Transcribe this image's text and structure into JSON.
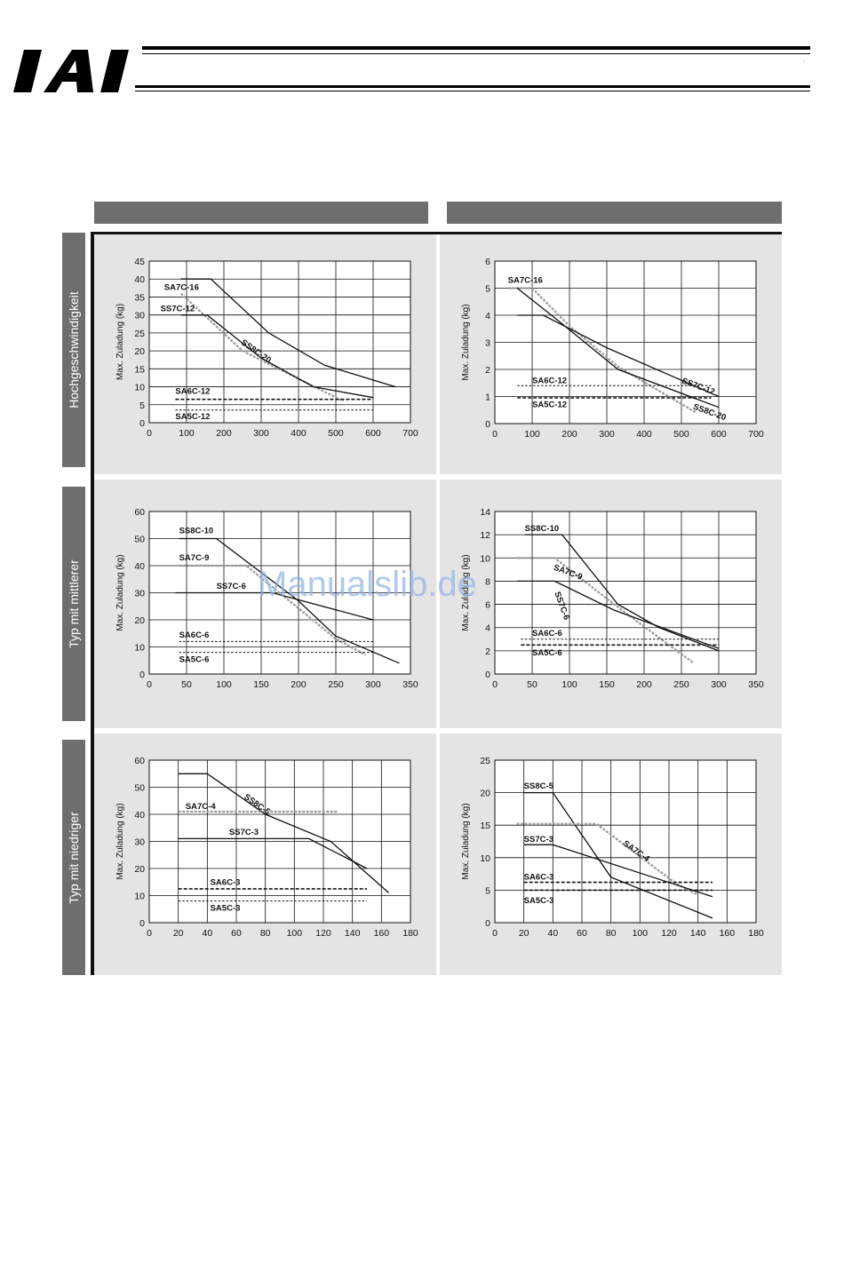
{
  "brand": {
    "logo_text": "IAI"
  },
  "column_headers": [
    "",
    ""
  ],
  "row_labels": [
    "Hochgeschwindigkeit",
    "Typ mit mittlerer",
    "Typ mit niedriger"
  ],
  "watermark": "Manualslib.de",
  "corner_mark": ".",
  "chart_data": [
    {
      "type": "line",
      "ylabel": "Max. Zuladung (kg)",
      "xlim": [
        0,
        700
      ],
      "ylim": [
        0,
        45
      ],
      "xticks": [
        0,
        100,
        200,
        300,
        400,
        500,
        600,
        700
      ],
      "yticks": [
        0,
        5,
        10,
        15,
        20,
        25,
        30,
        35,
        40,
        45
      ],
      "series": [
        {
          "name": "SA7C-16",
          "style": "gray",
          "points": [
            [
              85,
              36
            ],
            [
              250,
              20
            ],
            [
              520,
              6
            ]
          ],
          "label_at": [
            40,
            37
          ]
        },
        {
          "name": "SS8C-20",
          "style": "solid",
          "points": [
            [
              85,
              40
            ],
            [
              165,
              40
            ],
            [
              320,
              25
            ],
            [
              470,
              16
            ],
            [
              660,
              10
            ]
          ],
          "label_at": [
            245,
            22
          ],
          "rotate": 35
        },
        {
          "name": "SS7C-12",
          "style": "solid",
          "points": [
            [
              85,
              30
            ],
            [
              155,
              30
            ],
            [
              300,
              18
            ],
            [
              440,
              10
            ],
            [
              600,
              7
            ]
          ],
          "label_at": [
            30,
            31
          ]
        },
        {
          "name": "SA6C-12",
          "style": "dash",
          "points": [
            [
              70,
              6.5
            ],
            [
              600,
              6.5
            ]
          ],
          "label_at": [
            70,
            8
          ]
        },
        {
          "name": "SA5C-12",
          "style": "fine",
          "points": [
            [
              70,
              3.5
            ],
            [
              600,
              3.5
            ]
          ],
          "label_at": [
            70,
            1
          ]
        }
      ]
    },
    {
      "type": "line",
      "ylabel": "Max. Zuladung (kg)",
      "xlim": [
        0,
        700
      ],
      "ylim": [
        0,
        6
      ],
      "xticks": [
        0,
        100,
        200,
        300,
        400,
        500,
        600,
        700
      ],
      "yticks": [
        0,
        1,
        2,
        3,
        4,
        5,
        6
      ],
      "series": [
        {
          "name": "SA7C-16",
          "style": "gray",
          "points": [
            [
              35,
              5
            ],
            [
              100,
              5
            ],
            [
              200,
              3.6
            ],
            [
              330,
              2.1
            ],
            [
              540,
              0.4
            ]
          ],
          "label_at": [
            35,
            5.2
          ]
        },
        {
          "name": "SS7C-12",
          "style": "solid",
          "points": [
            [
              60,
              4
            ],
            [
              130,
              4
            ],
            [
              300,
              2.8
            ],
            [
              600,
              1
            ]
          ],
          "label_at": [
            500,
            1.5
          ],
          "rotate": 20
        },
        {
          "name": "SS8C-20",
          "style": "solid",
          "points": [
            [
              60,
              5
            ],
            [
              170,
              3.8
            ],
            [
              330,
              2
            ],
            [
              600,
              0.6
            ]
          ],
          "label_at": [
            530,
            0.55
          ],
          "rotate": 20
        },
        {
          "name": "SA6C-12",
          "style": "fine",
          "points": [
            [
              60,
              1.4
            ],
            [
              580,
              1.4
            ]
          ],
          "label_at": [
            100,
            1.5
          ]
        },
        {
          "name": "SA5C-12",
          "style": "dash",
          "points": [
            [
              60,
              0.95
            ],
            [
              580,
              0.95
            ]
          ],
          "label_at": [
            100,
            0.6
          ]
        }
      ]
    },
    {
      "type": "line",
      "ylabel": "Max. Zuladung (kg)",
      "xlim": [
        0,
        350
      ],
      "ylim": [
        0,
        60
      ],
      "xticks": [
        0,
        50,
        100,
        150,
        200,
        250,
        300,
        350
      ],
      "yticks": [
        0,
        10,
        20,
        30,
        40,
        50,
        60
      ],
      "series": [
        {
          "name": "SS8C-10",
          "style": "solid",
          "points": [
            [
              40,
              50
            ],
            [
              90,
              50
            ],
            [
              200,
              27
            ],
            [
              250,
              14
            ],
            [
              335,
              4
            ]
          ],
          "label_at": [
            40,
            52
          ]
        },
        {
          "name": "SA7C-9",
          "style": "gray",
          "points": [
            [
              40,
              40
            ],
            [
              130,
              40
            ],
            [
              250,
              13
            ],
            [
              290,
              7
            ]
          ],
          "label_at": [
            40,
            42
          ]
        },
        {
          "name": "SS7C-6",
          "style": "solid",
          "points": [
            [
              35,
              30
            ],
            [
              165,
              30
            ],
            [
              300,
              20
            ]
          ],
          "label_at": [
            90,
            31.5
          ]
        },
        {
          "name": "SA6C-6",
          "style": "fine",
          "points": [
            [
              40,
              12
            ],
            [
              300,
              12
            ]
          ],
          "label_at": [
            40,
            13.5
          ]
        },
        {
          "name": "SA5C-6",
          "style": "fine",
          "points": [
            [
              40,
              8
            ],
            [
              300,
              8
            ]
          ],
          "label_at": [
            40,
            4.5
          ]
        }
      ]
    },
    {
      "type": "line",
      "ylabel": "Max. Zuladung (kg)",
      "xlim": [
        0,
        350
      ],
      "ylim": [
        0,
        14
      ],
      "xticks": [
        0,
        50,
        100,
        150,
        200,
        250,
        300,
        350
      ],
      "yticks": [
        0,
        2,
        4,
        6,
        8,
        10,
        12,
        14
      ],
      "series": [
        {
          "name": "SS8C-10",
          "style": "solid",
          "points": [
            [
              40,
              12
            ],
            [
              90,
              12
            ],
            [
              165,
              6
            ],
            [
              220,
              4
            ],
            [
              300,
              2
            ]
          ],
          "label_at": [
            40,
            12.3
          ]
        },
        {
          "name": "SA7C-9",
          "style": "gray",
          "points": [
            [
              30,
              10
            ],
            [
              80,
              10
            ],
            [
              160,
              6
            ],
            [
              265,
              1
            ]
          ],
          "label_at": [
            78,
            9
          ],
          "rotate": 20
        },
        {
          "name": "SS7C-6",
          "style": "solid",
          "points": [
            [
              30,
              8
            ],
            [
              80,
              8
            ],
            [
              160,
              5.5
            ],
            [
              300,
              2.2
            ]
          ],
          "label_at": [
            80,
            7
          ],
          "rotate": 70
        },
        {
          "name": "SA6C-6",
          "style": "fine",
          "points": [
            [
              35,
              3
            ],
            [
              300,
              3
            ]
          ],
          "label_at": [
            50,
            3.3
          ]
        },
        {
          "name": "SA5C-6",
          "style": "dash",
          "points": [
            [
              35,
              2.5
            ],
            [
              300,
              2.5
            ]
          ],
          "label_at": [
            50,
            1.6
          ]
        }
      ]
    },
    {
      "type": "line",
      "ylabel": "Max. Zuladung (kg)",
      "xlim": [
        0,
        180
      ],
      "ylim": [
        0,
        60
      ],
      "xticks": [
        0,
        20,
        40,
        60,
        80,
        100,
        120,
        140,
        160,
        180
      ],
      "yticks": [
        0,
        10,
        20,
        30,
        40,
        50,
        60
      ],
      "series": [
        {
          "name": "SS8C-5",
          "style": "solid",
          "points": [
            [
              20,
              55
            ],
            [
              40,
              55
            ],
            [
              80,
              40
            ],
            [
              125,
              30
            ],
            [
              165,
              11
            ]
          ],
          "label_at": [
            65,
            46
          ],
          "rotate": 35
        },
        {
          "name": "SA7C-4",
          "style": "gray",
          "points": [
            [
              20,
              41
            ],
            [
              130,
              41
            ]
          ],
          "label_at": [
            25,
            42
          ]
        },
        {
          "name": "SS7C-3",
          "style": "solid",
          "points": [
            [
              20,
              31
            ],
            [
              110,
              31
            ],
            [
              150,
              20
            ]
          ],
          "label_at": [
            55,
            32.5
          ]
        },
        {
          "name": "SA6C-3",
          "style": "dash",
          "points": [
            [
              20,
              12.5
            ],
            [
              150,
              12.5
            ]
          ],
          "label_at": [
            42,
            14
          ]
        },
        {
          "name": "SA5C-3",
          "style": "fine",
          "points": [
            [
              20,
              8
            ],
            [
              150,
              8
            ]
          ],
          "label_at": [
            42,
            4.5
          ]
        }
      ]
    },
    {
      "type": "line",
      "ylabel": "Max. Zuladung (kg)",
      "xlim": [
        0,
        180
      ],
      "ylim": [
        0,
        25
      ],
      "xticks": [
        0,
        20,
        40,
        60,
        80,
        100,
        120,
        140,
        160,
        180
      ],
      "yticks": [
        0,
        5,
        10,
        15,
        20,
        25
      ],
      "series": [
        {
          "name": "SS8C-5",
          "style": "solid",
          "points": [
            [
              20,
              20
            ],
            [
              40,
              20
            ],
            [
              80,
              7
            ],
            [
              150,
              0.7
            ]
          ],
          "label_at": [
            20,
            20.6
          ]
        },
        {
          "name": "SA7C-4",
          "style": "gray",
          "points": [
            [
              15,
              15.2
            ],
            [
              70,
              15.2
            ],
            [
              125,
              6
            ],
            [
              140,
              4.3
            ]
          ],
          "label_at": [
            88,
            12
          ],
          "rotate": 35
        },
        {
          "name": "SS7C-3",
          "style": "solid",
          "points": [
            [
              20,
              12
            ],
            [
              40,
              12
            ],
            [
              150,
              4
            ]
          ],
          "label_at": [
            20,
            12.4
          ]
        },
        {
          "name": "SA6C-3",
          "style": "dash",
          "points": [
            [
              20,
              6.2
            ],
            [
              150,
              6.2
            ]
          ],
          "label_at": [
            20,
            6.6
          ]
        },
        {
          "name": "SA5C-3",
          "style": "dash",
          "points": [
            [
              20,
              5
            ],
            [
              150,
              5
            ]
          ],
          "label_at": [
            20,
            3
          ]
        }
      ]
    }
  ]
}
